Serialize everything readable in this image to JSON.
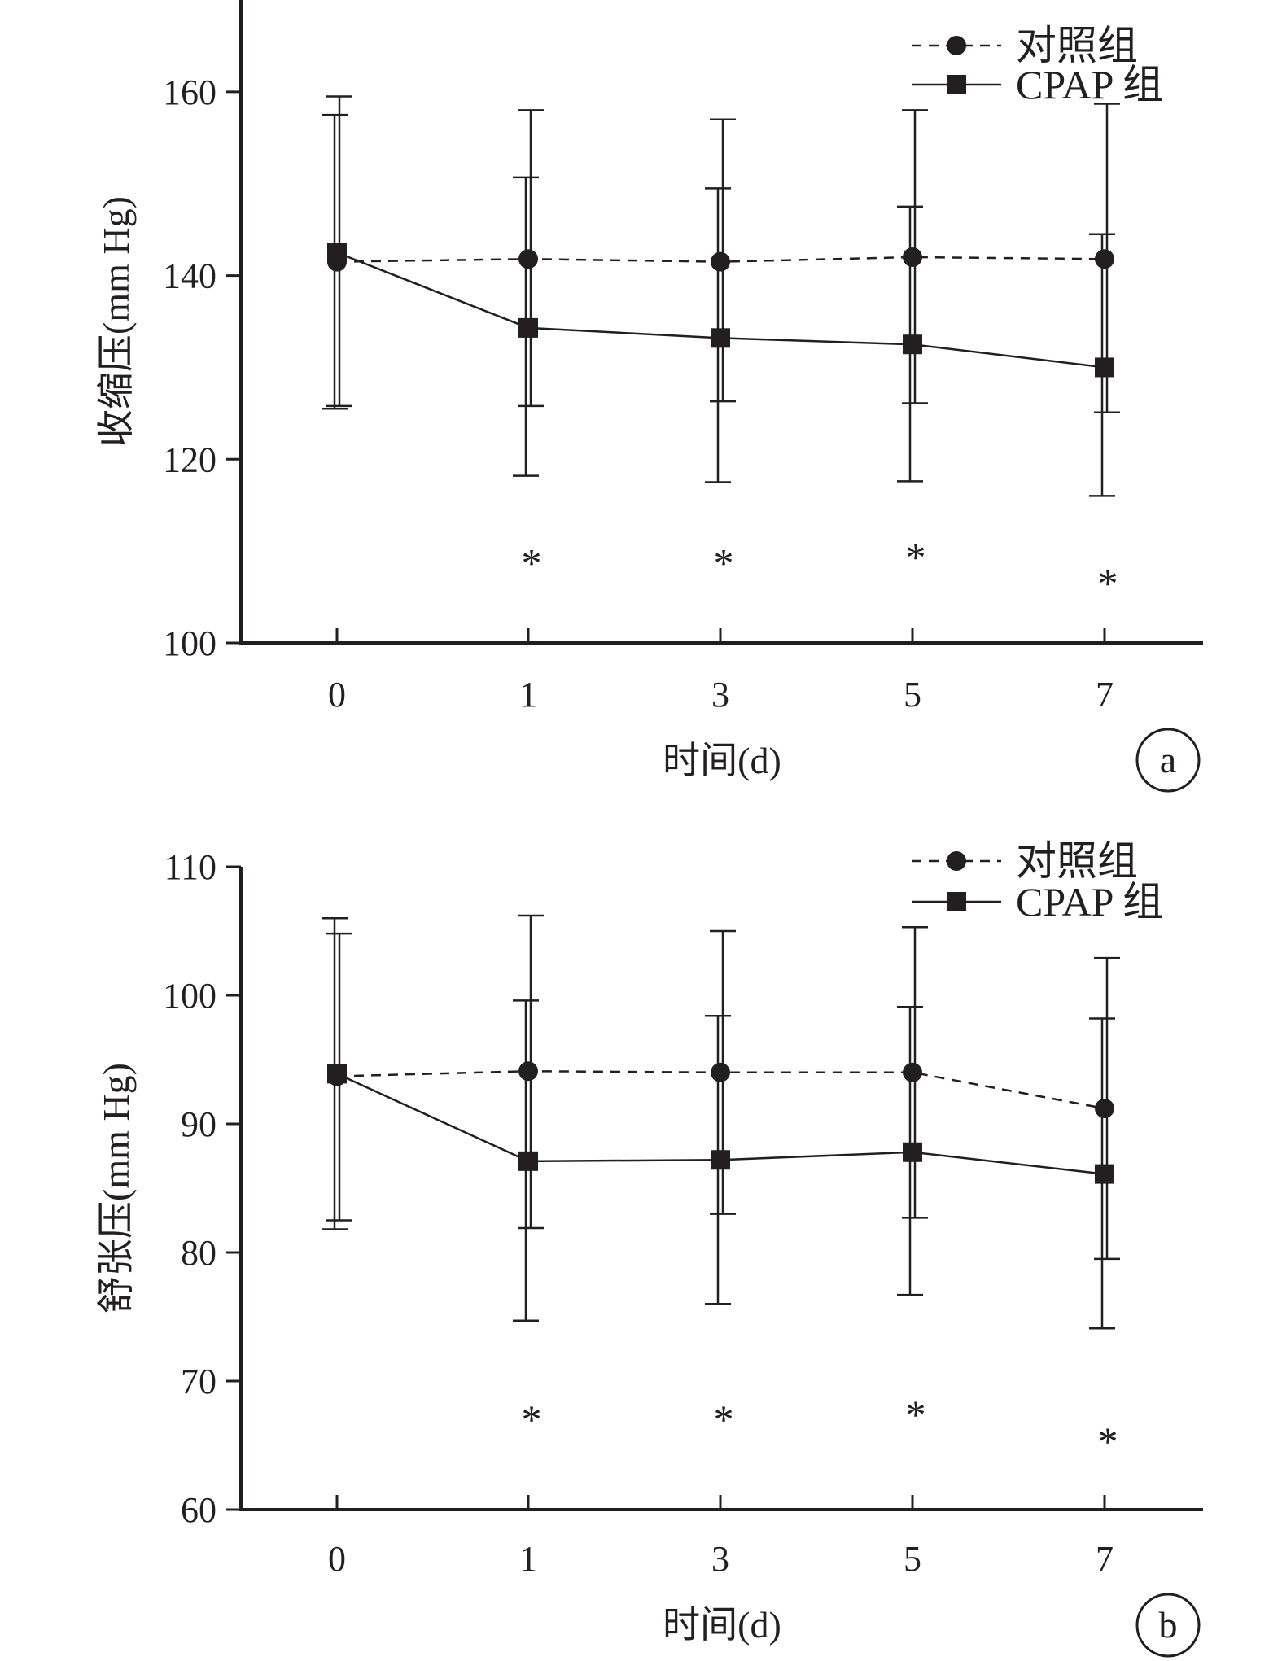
{
  "figure": {
    "legend": {
      "control": "对照组",
      "cpap": "CPAP 组"
    }
  },
  "chart_data": [
    {
      "type": "line",
      "panel": "a",
      "xlabel": "时间(d)",
      "ylabel": "收缩压(mm Hg)",
      "categories": [
        "0",
        "1",
        "3",
        "5",
        "7"
      ],
      "ylim": [
        100,
        170
      ],
      "yticks": [
        100,
        120,
        140,
        160
      ],
      "grid": false,
      "legend_position": "top-right",
      "series": [
        {
          "name": "对照组",
          "marker": "circle",
          "line_style": "dashed",
          "values": [
            141.5,
            141.8,
            141.5,
            142.0,
            141.8
          ],
          "error_upper": [
            157.5,
            150.7,
            149.5,
            147.5,
            144.5
          ],
          "error_lower": [
            125.5,
            118.2,
            117.5,
            117.6,
            116.0
          ]
        },
        {
          "name": "CPAP 组",
          "marker": "square",
          "line_style": "solid",
          "values": [
            142.5,
            134.3,
            133.2,
            132.5,
            130.0
          ],
          "error_upper": [
            159.5,
            158.0,
            157.0,
            158.0,
            158.7
          ],
          "error_lower": [
            125.8,
            125.8,
            126.3,
            126.1,
            125.1
          ]
        }
      ],
      "annotations": [
        {
          "x": "1",
          "text": "*",
          "y": 109
        },
        {
          "x": "3",
          "text": "*",
          "y": 109
        },
        {
          "x": "5",
          "text": "*",
          "y": 109.6
        },
        {
          "x": "7",
          "text": "*",
          "y": 106.8
        }
      ]
    },
    {
      "type": "line",
      "panel": "b",
      "xlabel": "时间(d)",
      "ylabel": "舒张压(mm Hg)",
      "categories": [
        "0",
        "1",
        "3",
        "5",
        "7"
      ],
      "ylim": [
        60,
        110
      ],
      "yticks": [
        60,
        70,
        80,
        90,
        100,
        110
      ],
      "grid": false,
      "legend_position": "top-right",
      "series": [
        {
          "name": "对照组",
          "marker": "circle",
          "line_style": "dashed",
          "values": [
            93.7,
            94.1,
            94.0,
            94.0,
            91.2
          ],
          "error_upper": [
            106.0,
            99.6,
            98.4,
            99.1,
            98.2
          ],
          "error_lower": [
            81.8,
            74.7,
            76.0,
            76.7,
            74.1
          ]
        },
        {
          "name": "CPAP 组",
          "marker": "square",
          "line_style": "solid",
          "values": [
            93.9,
            87.1,
            87.2,
            87.8,
            86.1
          ],
          "error_upper": [
            104.8,
            106.2,
            105.0,
            105.3,
            102.9
          ],
          "error_lower": [
            82.5,
            81.9,
            83.0,
            82.7,
            79.5
          ]
        }
      ],
      "annotations": [
        {
          "x": "1",
          "text": "*",
          "y": 67.2
        },
        {
          "x": "3",
          "text": "*",
          "y": 67.2
        },
        {
          "x": "5",
          "text": "*",
          "y": 67.6
        },
        {
          "x": "7",
          "text": "*",
          "y": 65.5
        }
      ]
    }
  ]
}
